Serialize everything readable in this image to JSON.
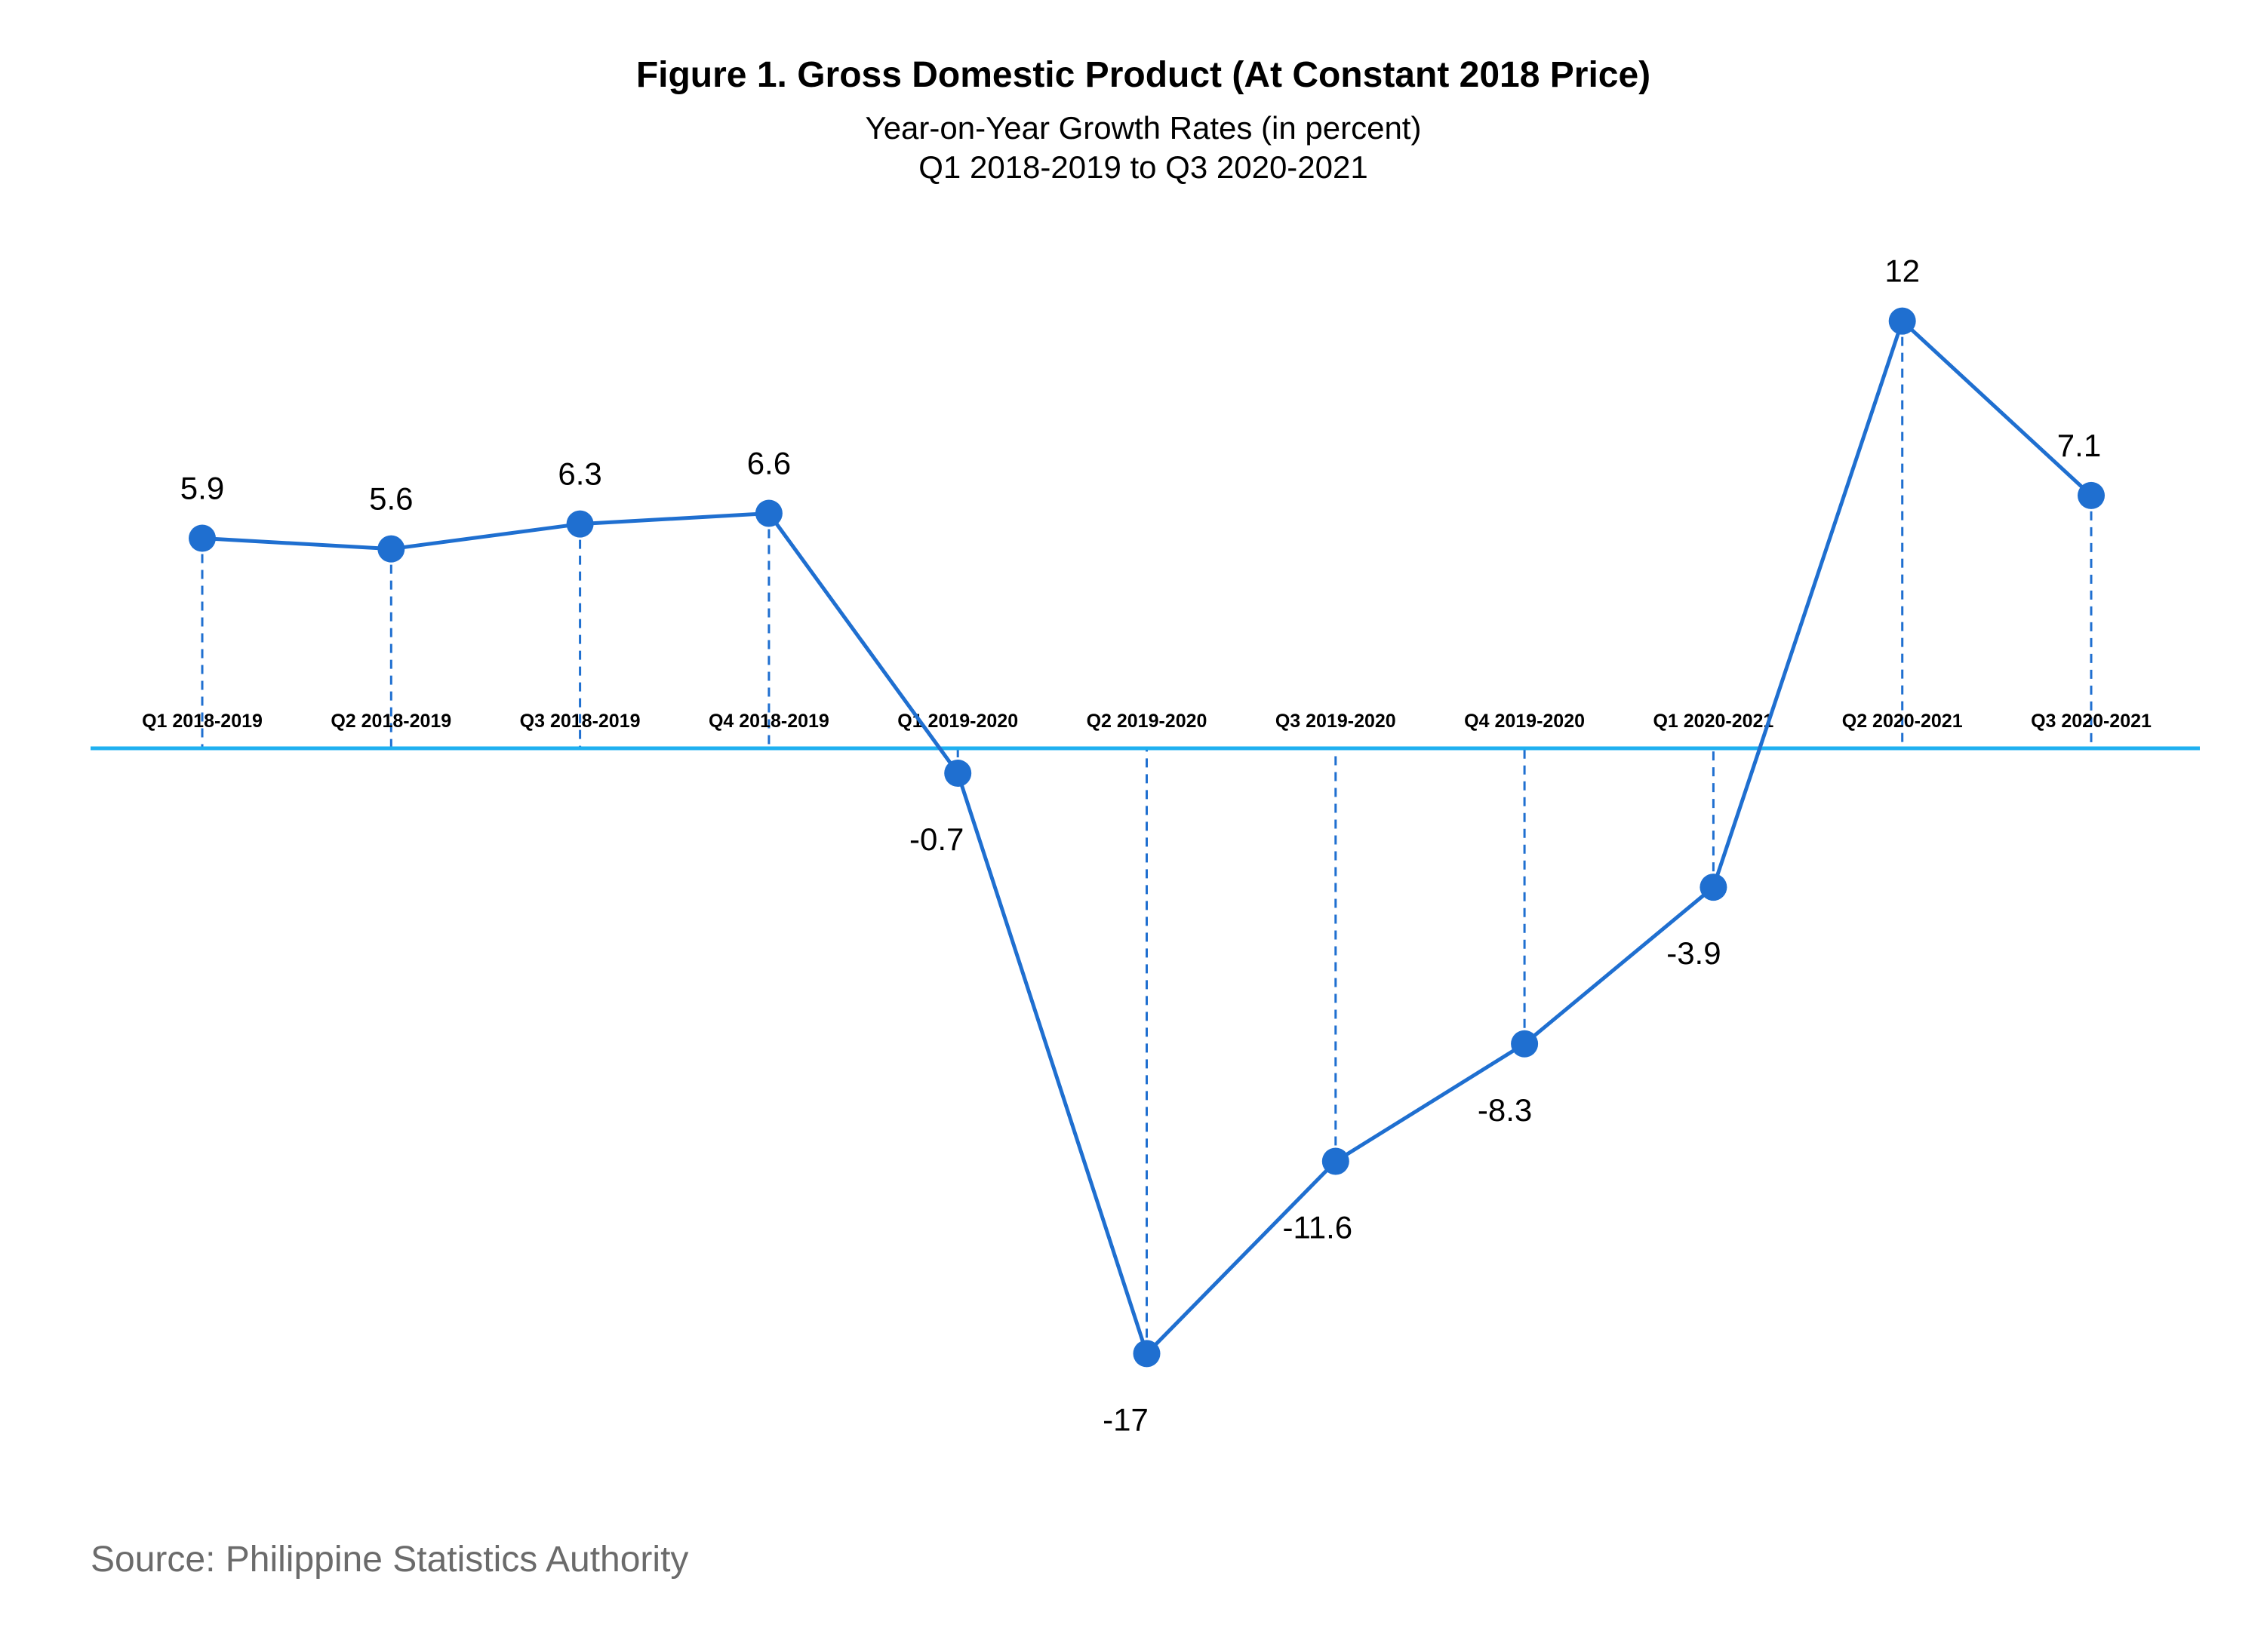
{
  "title": "Figure 1. Gross Domestic Product (At Constant 2018 Price)",
  "subtitle_line1": "Year-on-Year Growth Rates (in percent)",
  "subtitle_line2": "Q1 2018-2019 to Q3 2020-2021",
  "source": "Source: Philippine Statistics Authority",
  "colors": {
    "line": "#1f6fd0",
    "axis": "#1fb0f0"
  },
  "chart_data": {
    "type": "line",
    "categories": [
      "Q1 2018-2019",
      "Q2 2018-2019",
      "Q3 2018-2019",
      "Q4 2018-2019",
      "Q1 2019-2020",
      "Q2 2019-2020",
      "Q3 2019-2020",
      "Q4 2019-2020",
      "Q1 2020-2021",
      "Q2 2020-2021",
      "Q3 2020-2021"
    ],
    "values": [
      5.9,
      5.6,
      6.3,
      6.6,
      -0.7,
      -17,
      -11.6,
      -8.3,
      -3.9,
      12,
      7.1
    ],
    "value_labels": [
      "5.9",
      "5.6",
      "6.3",
      "6.6",
      "-0.7",
      "-17",
      "-11.6",
      "-8.3",
      "-3.9",
      "12",
      "7.1"
    ],
    "title": "Figure 1. Gross Domestic Product (At Constant 2018 Price)",
    "xlabel": "",
    "ylabel": "",
    "ylim": [
      -17,
      12
    ],
    "grid": false,
    "legend": false
  }
}
